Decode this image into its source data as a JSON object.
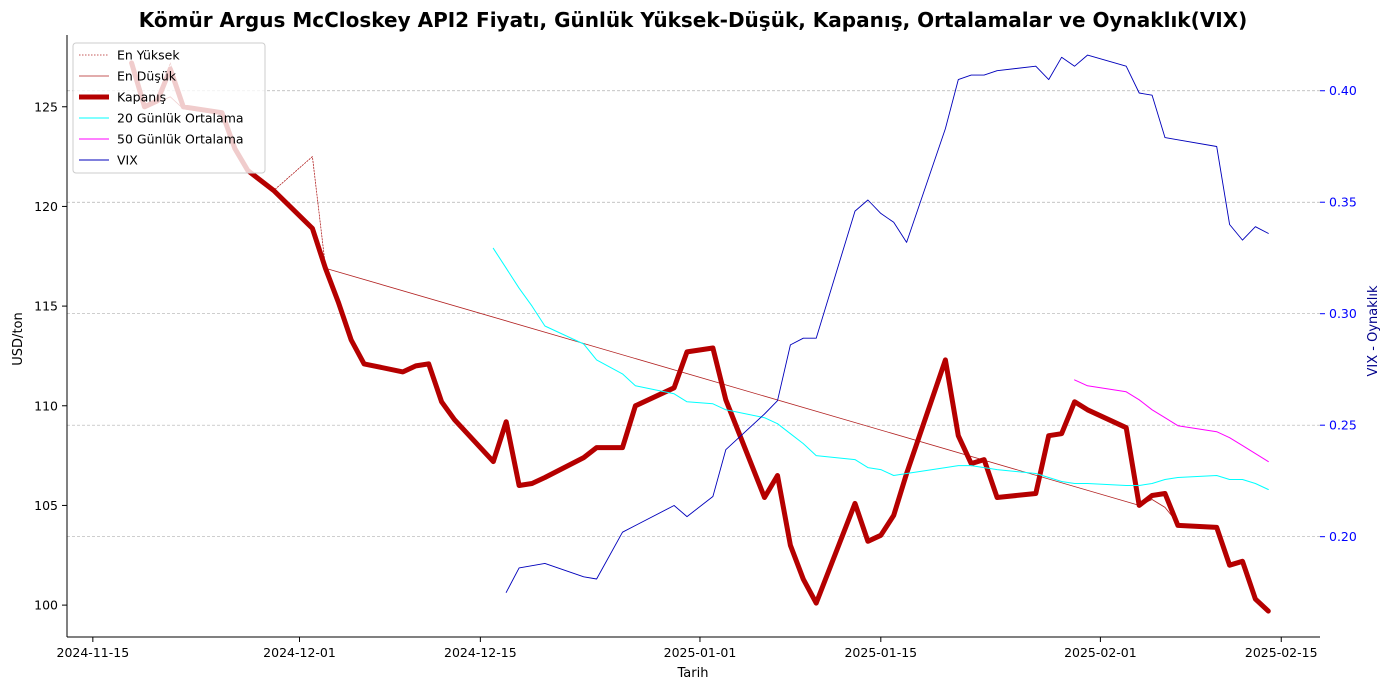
{
  "chart_data": {
    "type": "line",
    "title": "Kömür Argus McCloskey API2 Fiyatı, Günlük Yüksek-Düşük, Kapanış, Ortalamalar ve Oynaklık(VIX)",
    "xlabel": "Tarih",
    "ylabel": "USD/ton",
    "y2label": "VIX - Oynaklık",
    "xlim": [
      "2024-11-13",
      "2025-02-18"
    ],
    "ylim": [
      98.4,
      128.6
    ],
    "y2lim": [
      0.155,
      0.425
    ],
    "x_ticks": [
      "2024-11-15",
      "2024-12-01",
      "2024-12-15",
      "2025-01-01",
      "2025-01-15",
      "2025-02-01",
      "2025-02-15"
    ],
    "y_ticks": [
      100,
      105,
      110,
      115,
      120,
      125
    ],
    "y2_ticks": [
      0.2,
      0.25,
      0.3,
      0.35,
      0.4
    ],
    "y2_tick_labels": [
      "0.20",
      "0.25",
      "0.30",
      "0.35",
      "0.40"
    ],
    "grid": "horizontal dashed",
    "legend_position": "top-left",
    "colors": {
      "high": "#b22222",
      "low": "#b22222",
      "close": "#b50000",
      "ma20": "#00ffff",
      "ma50": "#ff00ff",
      "vix": "#0000bb",
      "y2_axis": "#0000ff"
    },
    "series": [
      {
        "name": "En Yüksek",
        "x": [
          "2024-11-18",
          "2024-11-19",
          "2024-11-20",
          "2024-11-21",
          "2024-11-22",
          "2024-11-25",
          "2024-11-26",
          "2024-11-27",
          "2024-11-29",
          "2024-12-02",
          "2024-12-03"
        ],
        "values": [
          127.3,
          125.0,
          125.3,
          127.2,
          125.0,
          124.7,
          123.0,
          121.8,
          120.8,
          122.5,
          117.0
        ]
      },
      {
        "name": "En Düşük",
        "x": [
          "2024-11-18",
          "2024-11-19",
          "2024-11-20",
          "2024-11-21",
          "2024-11-22",
          "2024-11-25",
          "2024-11-26",
          "2024-11-27",
          "2024-11-29",
          "2024-12-02",
          "2024-12-03",
          "2025-02-04",
          "2025-02-05",
          "2025-02-06",
          "2025-02-07"
        ],
        "values": [
          127.2,
          124.9,
          125.2,
          125.5,
          124.9,
          124.6,
          122.8,
          121.7,
          120.7,
          118.9,
          116.9,
          105.0,
          105.3,
          104.9,
          104.1
        ]
      },
      {
        "name": "Kapanış",
        "x": [
          "2024-11-18",
          "2024-11-19",
          "2024-11-20",
          "2024-11-21",
          "2024-11-22",
          "2024-11-25",
          "2024-11-26",
          "2024-11-27",
          "2024-11-29",
          "2024-12-02",
          "2024-12-03",
          "2024-12-04",
          "2024-12-05",
          "2024-12-06",
          "2024-12-09",
          "2024-12-10",
          "2024-12-11",
          "2024-12-12",
          "2024-12-13",
          "2024-12-16",
          "2024-12-17",
          "2024-12-18",
          "2024-12-19",
          "2024-12-20",
          "2024-12-23",
          "2024-12-24",
          "2024-12-26",
          "2024-12-27",
          "2024-12-30",
          "2024-12-31",
          "2025-01-02",
          "2025-01-03",
          "2025-01-06",
          "2025-01-07",
          "2025-01-08",
          "2025-01-09",
          "2025-01-10",
          "2025-01-13",
          "2025-01-14",
          "2025-01-15",
          "2025-01-16",
          "2025-01-17",
          "2025-01-20",
          "2025-01-21",
          "2025-01-22",
          "2025-01-23",
          "2025-01-24",
          "2025-01-27",
          "2025-01-28",
          "2025-01-29",
          "2025-01-30",
          "2025-01-31",
          "2025-02-03",
          "2025-02-04",
          "2025-02-05",
          "2025-02-06",
          "2025-02-07",
          "2025-02-10",
          "2025-02-11",
          "2025-02-12",
          "2025-02-13",
          "2025-02-14"
        ],
        "values": [
          127.2,
          125.0,
          125.3,
          126.9,
          125.0,
          124.7,
          122.9,
          121.8,
          120.8,
          118.9,
          116.9,
          115.2,
          113.3,
          112.1,
          111.7,
          112.0,
          112.1,
          110.2,
          109.3,
          107.2,
          109.2,
          106.0,
          106.1,
          106.4,
          107.4,
          107.9,
          107.9,
          110.0,
          110.9,
          112.7,
          112.9,
          110.3,
          105.4,
          106.5,
          103.0,
          101.3,
          100.1,
          105.1,
          103.2,
          103.5,
          104.5,
          106.6,
          112.3,
          108.5,
          107.1,
          107.3,
          105.4,
          105.6,
          108.5,
          108.6,
          110.2,
          109.8,
          108.9,
          105.0,
          105.5,
          105.6,
          104.0,
          103.9,
          102.0,
          102.2,
          100.3,
          99.7
        ]
      },
      {
        "name": "20 Günlük Ortalama",
        "x": [
          "2024-12-16",
          "2024-12-17",
          "2024-12-18",
          "2024-12-19",
          "2024-12-20",
          "2024-12-23",
          "2024-12-24",
          "2024-12-26",
          "2024-12-27",
          "2024-12-30",
          "2024-12-31",
          "2025-01-02",
          "2025-01-03",
          "2025-01-06",
          "2025-01-07",
          "2025-01-08",
          "2025-01-09",
          "2025-01-10",
          "2025-01-13",
          "2025-01-14",
          "2025-01-15",
          "2025-01-16",
          "2025-01-17",
          "2025-01-20",
          "2025-01-21",
          "2025-01-22",
          "2025-01-23",
          "2025-01-24",
          "2025-01-27",
          "2025-01-28",
          "2025-01-29",
          "2025-01-30",
          "2025-01-31",
          "2025-02-03",
          "2025-02-04",
          "2025-02-05",
          "2025-02-06",
          "2025-02-07",
          "2025-02-10",
          "2025-02-11",
          "2025-02-12",
          "2025-02-13",
          "2025-02-14"
        ],
        "values": [
          117.9,
          116.9,
          115.9,
          115.0,
          114.0,
          113.1,
          112.3,
          111.6,
          111.0,
          110.6,
          110.2,
          110.1,
          109.8,
          109.4,
          109.1,
          108.6,
          108.1,
          107.5,
          107.3,
          106.9,
          106.8,
          106.5,
          106.6,
          106.9,
          107.0,
          107.0,
          106.9,
          106.8,
          106.6,
          106.4,
          106.2,
          106.1,
          106.1,
          106.0,
          106.0,
          106.1,
          106.3,
          106.4,
          106.5,
          106.3,
          106.3,
          106.1,
          105.8
        ]
      },
      {
        "name": "50 Günlük Ortalama",
        "x": [
          "2025-01-30",
          "2025-01-31",
          "2025-02-03",
          "2025-02-04",
          "2025-02-05",
          "2025-02-06",
          "2025-02-07",
          "2025-02-10",
          "2025-02-11",
          "2025-02-12",
          "2025-02-13",
          "2025-02-14"
        ],
        "values": [
          111.3,
          111.0,
          110.7,
          110.3,
          109.8,
          109.4,
          109.0,
          108.7,
          108.4,
          108.0,
          107.6,
          107.2
        ]
      },
      {
        "name": "VIX",
        "x": [
          "2024-12-17",
          "2024-12-18",
          "2024-12-19",
          "2024-12-20",
          "2024-12-23",
          "2024-12-24",
          "2024-12-26",
          "2024-12-27",
          "2024-12-30",
          "2024-12-31",
          "2025-01-02",
          "2025-01-03",
          "2025-01-06",
          "2025-01-07",
          "2025-01-08",
          "2025-01-09",
          "2025-01-10",
          "2025-01-13",
          "2025-01-14",
          "2025-01-15",
          "2025-01-16",
          "2025-01-17",
          "2025-01-20",
          "2025-01-21",
          "2025-01-22",
          "2025-01-23",
          "2025-01-24",
          "2025-01-27",
          "2025-01-28",
          "2025-01-29",
          "2025-01-30",
          "2025-01-31",
          "2025-02-03",
          "2025-02-04",
          "2025-02-05",
          "2025-02-06",
          "2025-02-07",
          "2025-02-10",
          "2025-02-11",
          "2025-02-12",
          "2025-02-13",
          "2025-02-14"
        ],
        "values": [
          0.175,
          0.186,
          0.187,
          0.188,
          0.182,
          0.181,
          0.202,
          0.205,
          0.214,
          0.209,
          0.218,
          0.239,
          0.255,
          0.261,
          0.286,
          0.289,
          0.289,
          0.346,
          0.351,
          0.345,
          0.341,
          0.332,
          0.383,
          0.405,
          0.407,
          0.407,
          0.409,
          0.411,
          0.405,
          0.415,
          0.411,
          0.416,
          0.411,
          0.399,
          0.398,
          0.379,
          0.378,
          0.375,
          0.34,
          0.333,
          0.339,
          0.336
        ]
      }
    ],
    "legend": [
      "En Yüksek",
      "En Düşük",
      "Kapanış",
      "20 Günlük Ortalama",
      "50 Günlük Ortalama",
      "VIX"
    ]
  }
}
